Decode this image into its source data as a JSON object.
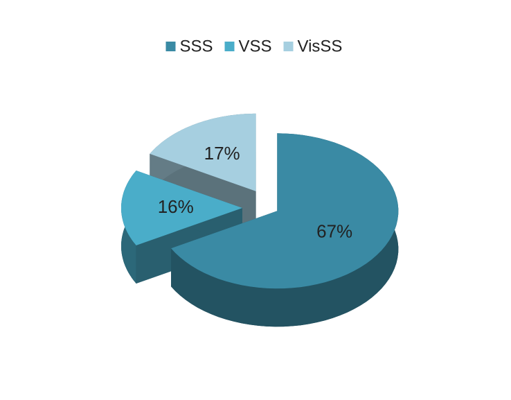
{
  "chart_data": {
    "type": "pie",
    "categories": [
      "SSS",
      "VSS",
      "VisSS"
    ],
    "values": [
      67,
      16,
      17
    ],
    "value_labels": [
      "67%",
      "16%",
      "17%"
    ],
    "colors": [
      "#3a8aa4",
      "#4aadc9",
      "#a6cfe0"
    ],
    "legend": "top"
  }
}
